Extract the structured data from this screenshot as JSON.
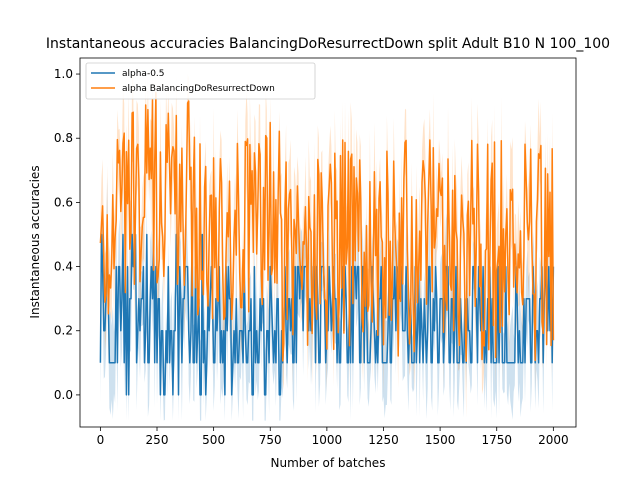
{
  "chart_data": {
    "type": "line",
    "title": "Instantaneous accuracies BalancingDoResurrectDown split Adult B10 N 100_100",
    "xlabel": "Number of batches",
    "ylabel": "Instantaneous accuracies",
    "xlim": [
      -90,
      2100
    ],
    "ylim": [
      -0.1,
      1.05
    ],
    "xticks": [
      0,
      250,
      500,
      750,
      1000,
      1250,
      1500,
      1750,
      2000
    ],
    "xtick_labels": [
      "0",
      "250",
      "500",
      "750",
      "1000",
      "1250",
      "1500",
      "1750",
      "2000"
    ],
    "yticks": [
      0.0,
      0.2,
      0.4,
      0.6,
      0.8,
      1.0
    ],
    "ytick_labels": [
      "0.0",
      "0.2",
      "0.4",
      "0.6",
      "0.8",
      "1.0"
    ],
    "grid": false,
    "legend_position": "top-left",
    "x_range": [
      0,
      2000
    ],
    "series": [
      {
        "name": "alpha-0.5",
        "color": "#1f77b4",
        "band_color": "#1f77b4",
        "mean_level_by_segment": [
          {
            "x": [
              0,
              50
            ],
            "low": 0.1,
            "high": 0.5
          },
          {
            "x": [
              50,
              500
            ],
            "low": 0.0,
            "high": 0.5
          },
          {
            "x": [
              500,
              800
            ],
            "low": 0.0,
            "high": 0.4
          },
          {
            "x": [
              800,
              2000
            ],
            "low": 0.05,
            "high": 0.45
          }
        ]
      },
      {
        "name": "alpha BalancingDoResurrectDown",
        "color": "#ff7f0e",
        "band_color": "#ff7f0e",
        "mean_level_by_segment": [
          {
            "x": [
              0,
              50
            ],
            "low": 0.2,
            "high": 0.7
          },
          {
            "x": [
              50,
              400
            ],
            "low": 0.3,
            "high": 0.95
          },
          {
            "x": [
              400,
              800
            ],
            "low": 0.2,
            "high": 0.85
          },
          {
            "x": [
              800,
              2000
            ],
            "low": 0.1,
            "high": 0.8
          }
        ]
      }
    ]
  }
}
